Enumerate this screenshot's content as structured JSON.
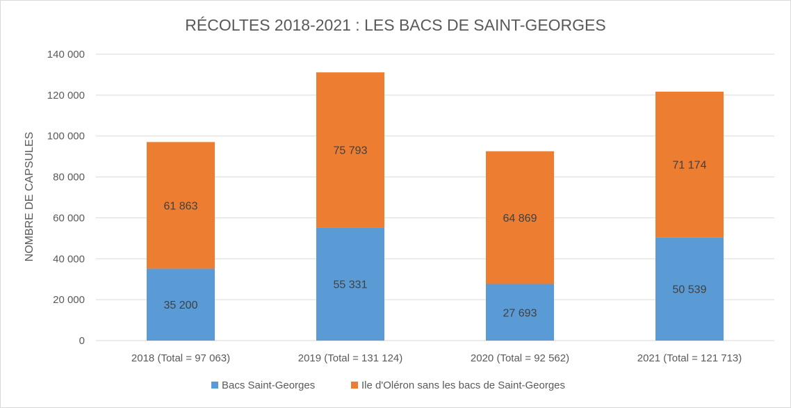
{
  "chart_data": {
    "type": "bar",
    "stacked": true,
    "title": "RÉCOLTES 2018-2021 : LES BACS DE SAINT-GEORGES",
    "xlabel": "",
    "ylabel": "NOMBRE DE CAPSULES",
    "ylim": [
      0,
      140000
    ],
    "yticks": [
      0,
      20000,
      40000,
      60000,
      80000,
      100000,
      120000,
      140000
    ],
    "ytick_labels": [
      "0",
      "20 000",
      "40 000",
      "60 000",
      "80 000",
      "100 000",
      "120 000",
      "140 000"
    ],
    "categories": [
      "2018 (Total = 97 063)",
      "2019 (Total = 131 124)",
      "2020 (Total = 92 562)",
      "2021 (Total = 121 713)"
    ],
    "series": [
      {
        "name": "Bacs Saint-Georges",
        "color": "#5b9bd5",
        "values": [
          35200,
          55331,
          27693,
          50539
        ],
        "labels": [
          "35 200",
          "55 331",
          "27 693",
          "50 539"
        ]
      },
      {
        "name": "Ile d'Oléron sans les bacs de Saint-Georges",
        "color": "#ed7d31",
        "values": [
          61863,
          75793,
          64869,
          71174
        ],
        "labels": [
          "61 863",
          "75 793",
          "64 869",
          "71 174"
        ]
      }
    ],
    "grid": true,
    "legend": "bottom"
  }
}
